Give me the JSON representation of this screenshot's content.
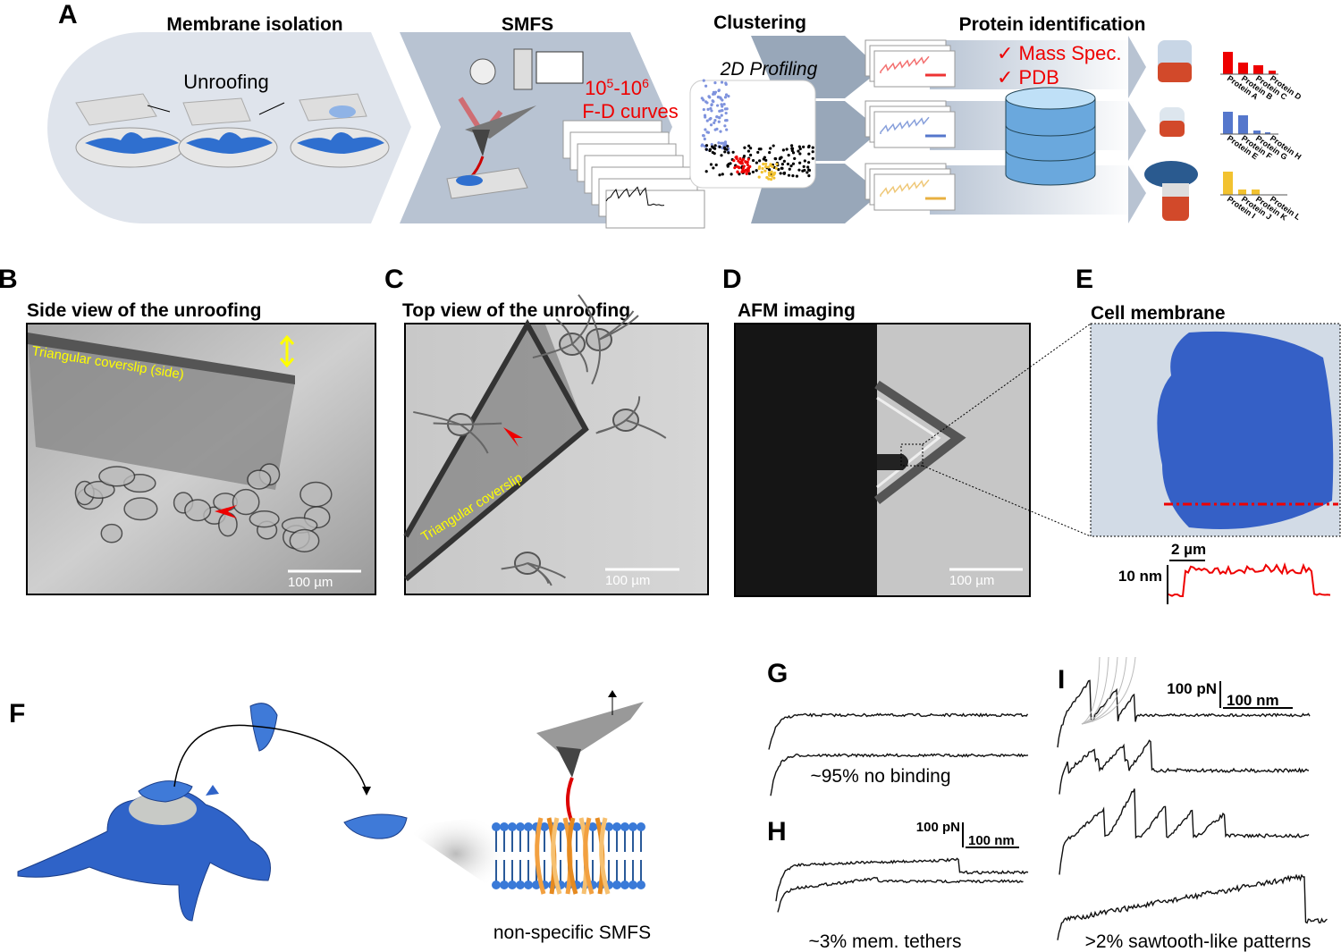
{
  "panel_a": {
    "label": "A",
    "steps": [
      "Membrane isolation",
      "SMFS",
      "Clustering",
      "Protein identification"
    ],
    "unroofing": "Unroofing",
    "curve_count": {
      "base1": "10",
      "exp1": "5",
      "base2": "-10",
      "exp2": "6"
    },
    "curves": "F-D curves",
    "profiling": "2D Profiling",
    "checks": [
      "✓ Mass Spec.",
      "✓ PDB"
    ],
    "proteins": [
      [
        "Protein A",
        "Protein B",
        "Protein C",
        "Protein D"
      ],
      [
        "Protein E",
        "Protein F",
        "Protein G",
        "Protein H"
      ],
      [
        "Protein I",
        "Protein J",
        "Protein K",
        "Protein L"
      ]
    ]
  },
  "panel_b": {
    "label": "B",
    "title": "Side view of the unroofing",
    "annotation": "Triangular coverslip (side)",
    "scale_bar": "100 µm"
  },
  "panel_c": {
    "label": "C",
    "title": "Top view of the unroofing",
    "annotation": "Triangular coverslip",
    "scale_bar": "100 µm"
  },
  "panel_d": {
    "label": "D",
    "title": "AFM imaging",
    "scale_bar": "100 µm"
  },
  "panel_e": {
    "label": "E",
    "title": "Cell membrane",
    "scale_x": "2 µm",
    "scale_y": "10 nm"
  },
  "panel_f": {
    "label": "F",
    "caption": "non-specific SMFS"
  },
  "panel_g": {
    "label": "G",
    "caption": "~95% no binding"
  },
  "panel_h": {
    "label": "H",
    "scale_force": "100 pN",
    "scale_distance": "100 nm",
    "caption": "~3% mem. tethers"
  },
  "panel_i": {
    "label": "I",
    "scale_force": "100 pN",
    "scale_distance": "100 nm",
    "caption": ">2% sawtooth-like patterns"
  }
}
